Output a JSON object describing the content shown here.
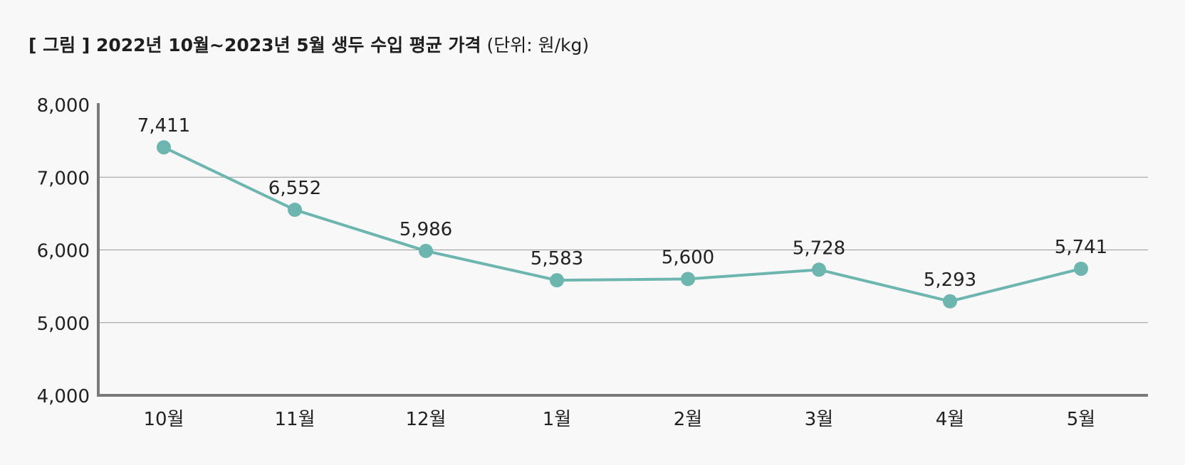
{
  "title": {
    "main": "[ 그림 ] 2022년 10월~2023년 5월 생두 수입 평균 가격",
    "unit": "(단위: 원/kg)"
  },
  "colors": {
    "series": "#6db5af",
    "axis": "#7a7a7a",
    "grid": "#9a9a9a",
    "background": "#f8f8f8"
  },
  "chart_data": {
    "type": "line",
    "title": "[ 그림 ] 2022년 10월~2023년 5월 생두 수입 평균 가격",
    "subtitle": "(단위: 원/kg)",
    "xlabel": "",
    "ylabel": "",
    "categories": [
      "10월",
      "11월",
      "12월",
      "1월",
      "2월",
      "3월",
      "4월",
      "5월"
    ],
    "series": [
      {
        "values": [
          7411,
          6552,
          5986,
          5583,
          5600,
          5728,
          5293,
          5741
        ]
      }
    ],
    "data_labels": [
      "7,411",
      "6,552",
      "5,986",
      "5,583",
      "5,600",
      "5,728",
      "5,293",
      "5,741"
    ],
    "ylim": [
      4000,
      8000
    ],
    "yticks": [
      4000,
      5000,
      6000,
      7000,
      8000
    ],
    "ytick_labels": [
      "4,000",
      "5,000",
      "6,000",
      "7,000",
      "8,000"
    ],
    "grid": true,
    "legend": "none"
  }
}
